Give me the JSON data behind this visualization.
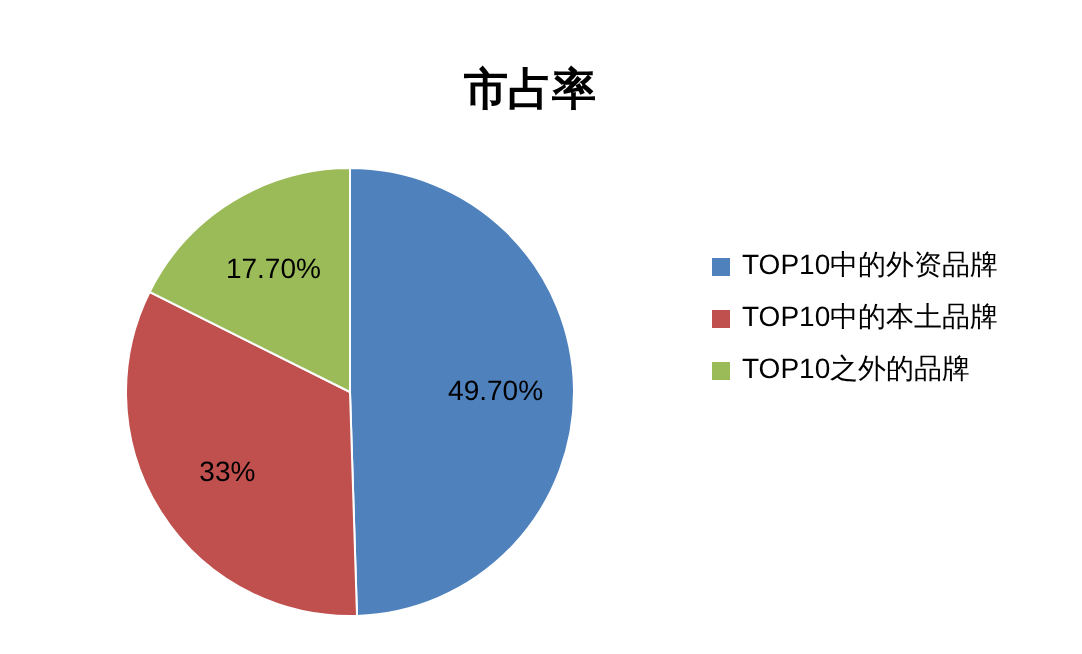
{
  "chart_data": {
    "type": "pie",
    "title": "市占率",
    "categories": [
      "TOP10中的外资品牌",
      "TOP10中的本土品牌",
      "TOP10之外的品牌"
    ],
    "values": [
      49.7,
      33,
      17.7
    ],
    "colors": [
      "#4f81bd",
      "#c0504d",
      "#9bbb59"
    ],
    "value_labels": [
      "49.70%",
      "33%",
      "17.70%"
    ],
    "legend": "right"
  }
}
